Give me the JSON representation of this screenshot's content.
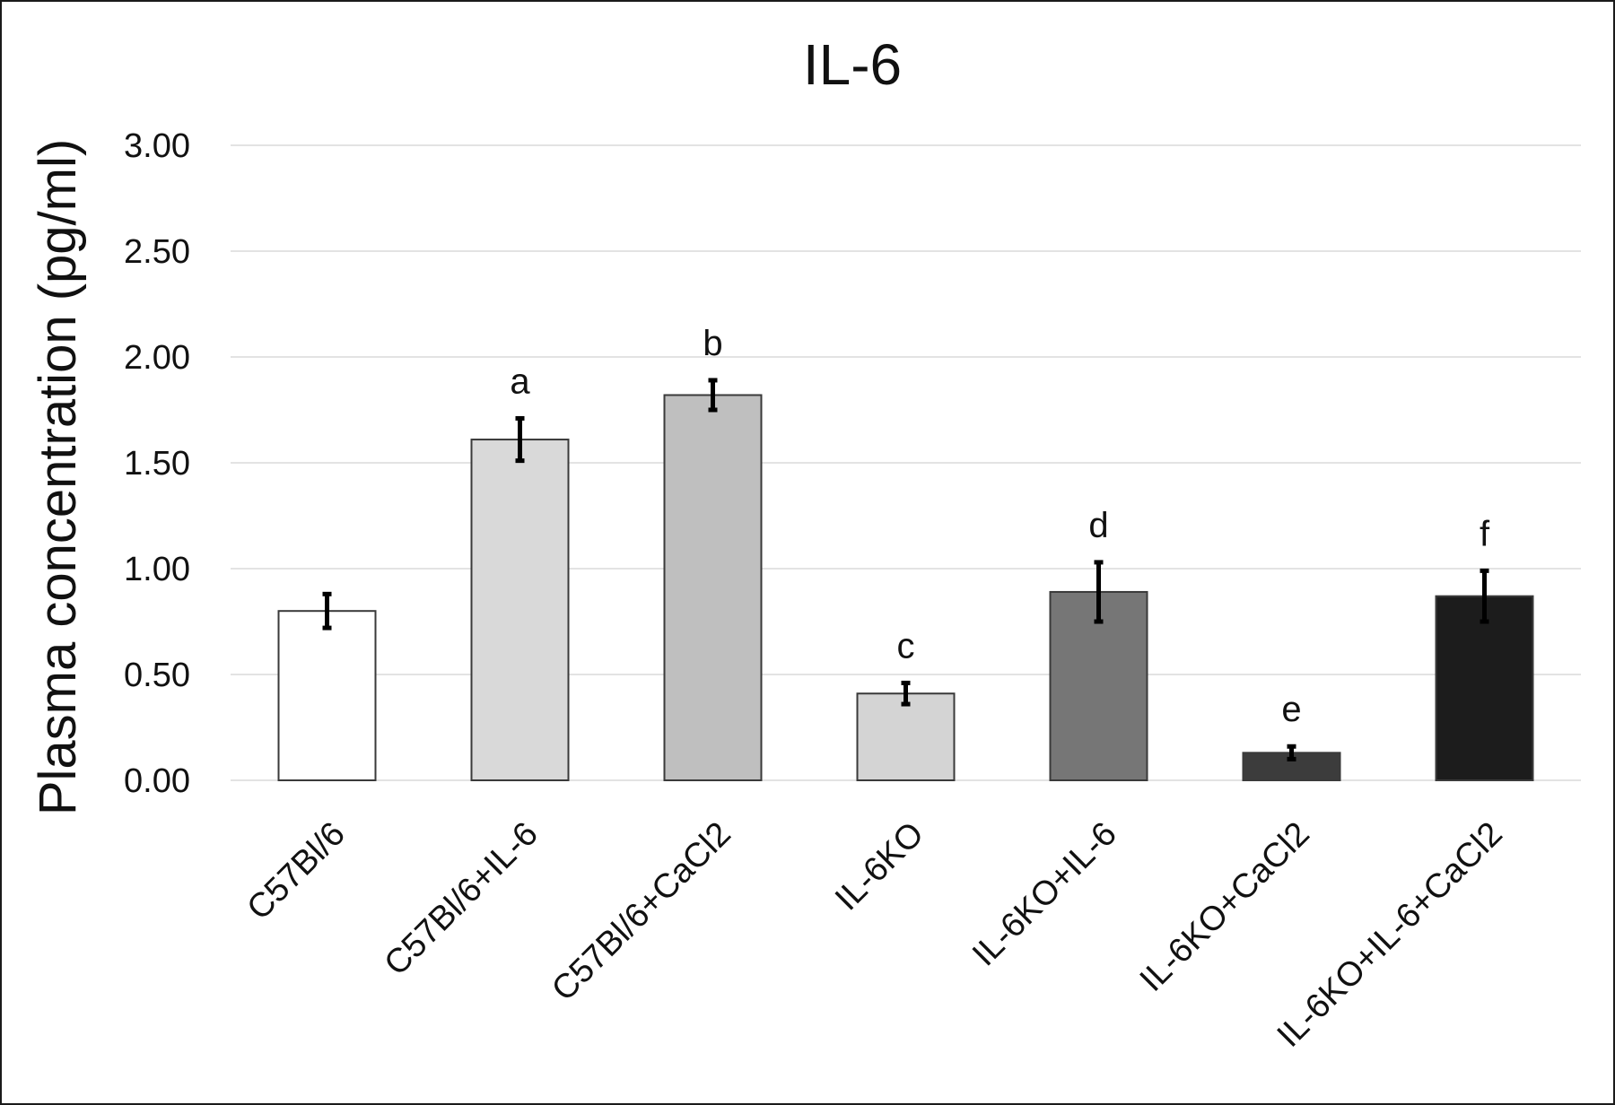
{
  "chart_data": {
    "type": "bar",
    "title": "IL-6",
    "xlabel": "",
    "ylabel": "Plasma concentration (pg/ml)",
    "ylim": [
      0,
      3
    ],
    "yticks": [
      "0.00",
      "0.50",
      "1.00",
      "1.50",
      "2.00",
      "2.50",
      "3.00"
    ],
    "grid": true,
    "legend": "none",
    "categories": [
      "C57Bl/6",
      "C57Bl/6+IL-6",
      "C57Bl/6+CaCl2",
      "IL-6KO",
      "IL-6KO+IL-6",
      "IL-6KO+CaCl2",
      "IL-6KO+IL-6+CaCl2"
    ],
    "values": [
      0.8,
      1.61,
      1.82,
      0.41,
      0.89,
      0.13,
      0.87
    ],
    "errors": [
      0.08,
      0.1,
      0.07,
      0.05,
      0.14,
      0.03,
      0.12
    ],
    "annotations": [
      "",
      "a",
      "b",
      "c",
      "d",
      "e",
      "f"
    ],
    "colors": [
      "#ffffff",
      "#d9d9d9",
      "#bfbfbf",
      "#d4d4d4",
      "#767676",
      "#3c3c3c",
      "#1c1c1c"
    ]
  }
}
